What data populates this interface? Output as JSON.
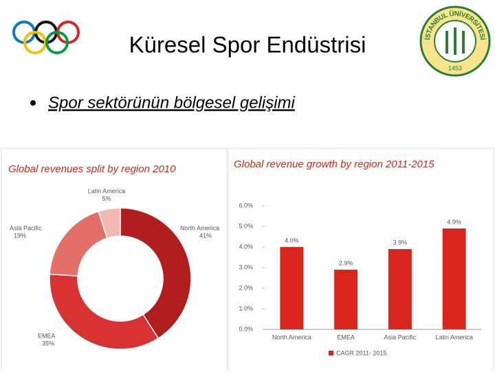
{
  "title": "Küresel Spor Endüstrisi",
  "bullet": "Spor sektörünün bölgesel gelişimi",
  "logo": {
    "name": "İSTANBUL ÜNİVERSİTESİ",
    "year": "1453"
  },
  "chart_data": [
    {
      "type": "donut",
      "title": "Global revenues split by region 2010",
      "categories": [
        "North America",
        "EMEA",
        "Asia Pacific",
        "Latin America"
      ],
      "values": [
        41,
        35,
        19,
        5
      ],
      "value_labels": [
        "41%",
        "35%",
        "19%",
        "5%"
      ],
      "colors": [
        "#b01e1e",
        "#d83232",
        "#e27068",
        "#f2b9b4"
      ]
    },
    {
      "type": "bar",
      "title": "Global revenue growth by region 2011-2015",
      "categories": [
        "North America",
        "EMEA",
        "Asia Pacific",
        "Latin America"
      ],
      "series": [
        {
          "name": "CAGR 2011- 2015",
          "color": "#d9261c",
          "values": [
            4.0,
            2.9,
            3.9,
            4.9
          ],
          "value_labels": [
            "4.0%",
            "2.9%",
            "3.9%",
            "4.9%"
          ]
        }
      ],
      "ylim": [
        0,
        6
      ],
      "yticks": [
        {
          "value": 0,
          "label": "0.0%"
        },
        {
          "value": 1,
          "label": "1.0%"
        },
        {
          "value": 2,
          "label": "2.0%"
        },
        {
          "value": 3,
          "label": "3.0%"
        },
        {
          "value": 4,
          "label": "4.0%"
        },
        {
          "value": 5,
          "label": "5.0%"
        },
        {
          "value": 6,
          "label": "6.0%"
        }
      ],
      "grid": false,
      "legend": "bottom"
    }
  ]
}
